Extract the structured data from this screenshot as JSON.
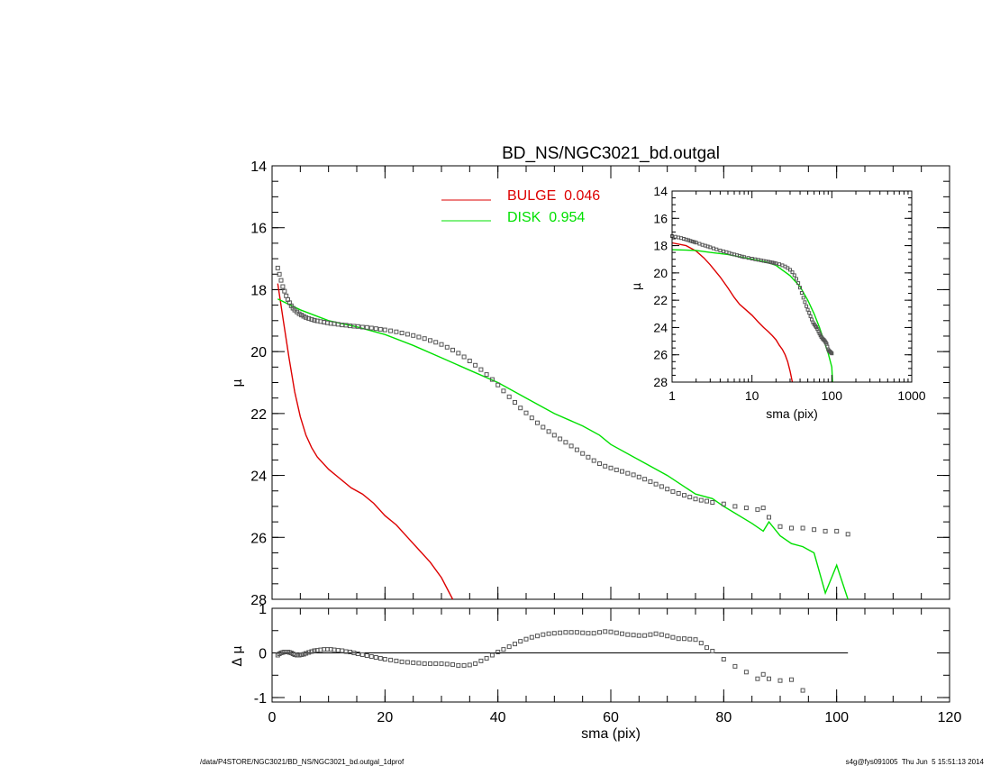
{
  "footer": {
    "left": "/data/P4STORE/NGC3021/BD_NS/NGC3021_bd.outgal_1dprof",
    "right": "s4g@fys091005  Thu Jun  5 15:51:13 2014"
  },
  "colors": {
    "bulge": "#dd0000",
    "disk": "#00e000",
    "data": "#555555",
    "axis": "#000000"
  },
  "chart_data": [
    {
      "id": "main",
      "type": "line",
      "title": "BD_NS/NGC3021_bd.outgal",
      "xlabel": "",
      "ylabel": "μ",
      "xlim": [
        0,
        120
      ],
      "ylim": [
        28,
        14
      ],
      "yticks": [
        14,
        16,
        18,
        20,
        22,
        24,
        26,
        28
      ],
      "legend_position": "top-center",
      "series": [
        {
          "name": "BULGE  0.046",
          "kind": "line",
          "color": "#dd0000",
          "x": [
            1,
            2,
            3,
            4,
            5,
            6,
            7,
            8,
            10,
            12,
            14,
            16,
            18,
            20,
            22,
            24,
            26,
            28,
            30,
            32
          ],
          "y": [
            17.8,
            19.0,
            20.2,
            21.3,
            22.1,
            22.7,
            23.1,
            23.4,
            23.8,
            24.1,
            24.4,
            24.6,
            24.9,
            25.3,
            25.6,
            26.0,
            26.4,
            26.8,
            27.3,
            28.0
          ]
        },
        {
          "name": "DISK  0.954",
          "kind": "line",
          "color": "#00e000",
          "x": [
            1,
            5,
            10,
            15,
            20,
            25,
            30,
            35,
            40,
            45,
            50,
            55,
            58,
            60,
            65,
            70,
            75,
            78,
            80,
            85,
            87,
            88,
            90,
            92,
            94,
            96,
            98,
            100,
            102
          ],
          "y": [
            18.3,
            18.65,
            19.0,
            19.2,
            19.45,
            19.8,
            20.2,
            20.6,
            21.0,
            21.5,
            22.0,
            22.4,
            22.7,
            23.0,
            23.5,
            24.0,
            24.6,
            24.75,
            25.0,
            25.55,
            25.8,
            25.5,
            25.95,
            26.2,
            26.3,
            26.5,
            27.8,
            26.9,
            28.1
          ]
        },
        {
          "name": "",
          "kind": "markers",
          "color": "#555555",
          "x": [
            1.0,
            1.3,
            1.6,
            1.9,
            2.2,
            2.5,
            2.8,
            3.1,
            3.4,
            3.7,
            4.0,
            4.4,
            4.8,
            5.2,
            5.6,
            6.0,
            6.5,
            7.0,
            7.5,
            8.0,
            8.6,
            9.2,
            9.8,
            10.4,
            11.0,
            11.7,
            12.4,
            13.1,
            13.8,
            14.5,
            15.2,
            16.0,
            16.8,
            17.6,
            18.4,
            19.2,
            20.0,
            21.0,
            22.0,
            23.0,
            24.0,
            25.0,
            26.0,
            27.0,
            28.0,
            29.0,
            30.0,
            31.0,
            32.0,
            33.0,
            34.0,
            35.0,
            36.0,
            37.0,
            38.0,
            39.0,
            40.0,
            41.0,
            42.0,
            43.0,
            44.0,
            45.0,
            46.0,
            47.0,
            48.0,
            49.0,
            50.0,
            51.0,
            52.0,
            53.0,
            54.0,
            55.0,
            56.0,
            57.0,
            58.0,
            59.0,
            60.0,
            61.0,
            62.0,
            63.0,
            64.0,
            65.0,
            66.0,
            67.0,
            68.0,
            69.0,
            70.0,
            71.0,
            72.0,
            73.0,
            74.0,
            75.0,
            76.0,
            77.0,
            78.0,
            80.0,
            82.0,
            84.0,
            86.0,
            87.0,
            88.0,
            90.0,
            92.0,
            94.0,
            96.0,
            98.0,
            100.0,
            102.0
          ],
          "y": [
            17.3,
            17.5,
            17.7,
            17.9,
            18.05,
            18.2,
            18.32,
            18.42,
            18.52,
            18.6,
            18.66,
            18.72,
            18.78,
            18.82,
            18.86,
            18.9,
            18.93,
            18.96,
            18.99,
            19.01,
            19.03,
            19.05,
            19.07,
            19.09,
            19.1,
            19.12,
            19.14,
            19.15,
            19.17,
            19.18,
            19.19,
            19.21,
            19.22,
            19.24,
            19.26,
            19.28,
            19.3,
            19.33,
            19.36,
            19.4,
            19.44,
            19.48,
            19.53,
            19.58,
            19.64,
            19.7,
            19.77,
            19.86,
            19.95,
            20.05,
            20.17,
            20.3,
            20.44,
            20.58,
            20.74,
            20.9,
            21.08,
            21.27,
            21.46,
            21.64,
            21.82,
            21.98,
            22.14,
            22.3,
            22.44,
            22.58,
            22.7,
            22.82,
            22.93,
            23.05,
            23.17,
            23.29,
            23.41,
            23.52,
            23.62,
            23.7,
            23.76,
            23.82,
            23.87,
            23.93,
            23.98,
            24.05,
            24.12,
            24.2,
            24.28,
            24.36,
            24.44,
            24.52,
            24.58,
            24.64,
            24.7,
            24.76,
            24.8,
            24.83,
            24.87,
            24.92,
            25.0,
            25.05,
            25.1,
            25.05,
            25.35,
            25.65,
            25.7,
            25.7,
            25.75,
            25.8,
            25.8,
            25.9
          ]
        }
      ]
    },
    {
      "id": "residual",
      "type": "scatter",
      "xlabel": "sma (pix)",
      "ylabel": "Δ μ",
      "xlim": [
        0,
        120
      ],
      "ylim": [
        -1.1,
        1.0
      ],
      "xticks": [
        0,
        20,
        40,
        60,
        80,
        100,
        120
      ],
      "yticks": [
        1,
        0,
        -1
      ],
      "zero_line": {
        "x": [
          0,
          102
        ],
        "y": 0
      },
      "series": [
        {
          "name": "",
          "kind": "markers",
          "color": "#555555",
          "x": [
            1.0,
            1.3,
            1.6,
            1.9,
            2.2,
            2.5,
            2.8,
            3.1,
            3.4,
            3.7,
            4.0,
            4.4,
            4.8,
            5.2,
            5.6,
            6.0,
            6.5,
            7.0,
            7.5,
            8.0,
            8.6,
            9.2,
            9.8,
            10.4,
            11.0,
            11.7,
            12.4,
            13.1,
            13.8,
            14.5,
            15.2,
            16.0,
            16.8,
            17.6,
            18.4,
            19.2,
            20.0,
            21.0,
            22.0,
            23.0,
            24.0,
            25.0,
            26.0,
            27.0,
            28.0,
            29.0,
            30.0,
            31.0,
            32.0,
            33.0,
            34.0,
            35.0,
            36.0,
            37.0,
            38.0,
            39.0,
            40.0,
            41.0,
            42.0,
            43.0,
            44.0,
            45.0,
            46.0,
            47.0,
            48.0,
            49.0,
            50.0,
            51.0,
            52.0,
            53.0,
            54.0,
            55.0,
            56.0,
            57.0,
            58.0,
            59.0,
            60.0,
            61.0,
            62.0,
            63.0,
            64.0,
            65.0,
            66.0,
            67.0,
            68.0,
            69.0,
            70.0,
            71.0,
            72.0,
            73.0,
            74.0,
            75.0,
            76.0,
            77.0,
            78.0,
            80.0,
            82.0,
            84.0,
            86.0,
            87.0,
            88.0,
            90.0,
            92.0,
            94.0
          ],
          "y": [
            -0.05,
            -0.02,
            0.0,
            0.01,
            0.02,
            0.02,
            0.02,
            0.01,
            0.0,
            -0.02,
            -0.04,
            -0.05,
            -0.05,
            -0.04,
            -0.03,
            -0.01,
            0.01,
            0.03,
            0.05,
            0.06,
            0.07,
            0.08,
            0.08,
            0.08,
            0.07,
            0.06,
            0.05,
            0.03,
            0.02,
            0.0,
            -0.02,
            -0.04,
            -0.06,
            -0.08,
            -0.1,
            -0.12,
            -0.14,
            -0.16,
            -0.18,
            -0.2,
            -0.21,
            -0.22,
            -0.23,
            -0.24,
            -0.24,
            -0.24,
            -0.24,
            -0.25,
            -0.26,
            -0.28,
            -0.28,
            -0.27,
            -0.24,
            -0.18,
            -0.12,
            -0.05,
            0.02,
            0.08,
            0.14,
            0.2,
            0.26,
            0.31,
            0.35,
            0.38,
            0.41,
            0.43,
            0.44,
            0.45,
            0.46,
            0.46,
            0.46,
            0.45,
            0.44,
            0.44,
            0.46,
            0.48,
            0.47,
            0.45,
            0.43,
            0.41,
            0.4,
            0.39,
            0.39,
            0.41,
            0.43,
            0.41,
            0.38,
            0.35,
            0.32,
            0.32,
            0.31,
            0.3,
            0.22,
            0.12,
            0.04,
            -0.14,
            -0.3,
            -0.43,
            -0.58,
            -0.48,
            -0.58,
            -0.62,
            -0.6,
            -0.84
          ]
        }
      ]
    },
    {
      "id": "inset",
      "type": "line",
      "xlabel": "sma (pix)",
      "ylabel": "μ",
      "xscale": "log",
      "xlim": [
        1,
        1000
      ],
      "ylim": [
        28,
        14
      ],
      "xticks": [
        1,
        10,
        100,
        1000
      ],
      "yticks": [
        14,
        16,
        18,
        20,
        22,
        24,
        26,
        28
      ],
      "series": [
        {
          "name": "",
          "kind": "line",
          "color": "#dd0000",
          "x": [
            1.0,
            1.5,
            2.0,
            2.5,
            3.0,
            4.0,
            5.0,
            6.0,
            7.0,
            8.0,
            10.0,
            12.0,
            14.0,
            16.0,
            18.0,
            20.0,
            22.0,
            24.0,
            26.0,
            28.0,
            30.0,
            32.0
          ],
          "y": [
            17.8,
            18.0,
            18.4,
            18.9,
            19.4,
            20.3,
            21.1,
            21.8,
            22.3,
            22.6,
            23.1,
            23.6,
            24.0,
            24.3,
            24.6,
            24.9,
            25.3,
            25.6,
            26.0,
            26.5,
            27.2,
            28.0
          ]
        },
        {
          "name": "",
          "kind": "line",
          "color": "#00e000",
          "x": [
            1.0,
            2.0,
            3.0,
            5.0,
            10.0,
            15.0,
            20.0,
            30.0,
            40.0,
            50.0,
            60.0,
            70.0,
            80.0,
            90.0,
            100.0,
            102.0
          ],
          "y": [
            18.3,
            18.35,
            18.5,
            18.65,
            19.0,
            19.2,
            19.45,
            20.2,
            21.0,
            22.0,
            23.0,
            24.0,
            25.0,
            25.9,
            26.9,
            28.0
          ]
        },
        {
          "name": "",
          "kind": "markers",
          "color": "#555555",
          "x": [
            1.0,
            1.1,
            1.2,
            1.3,
            1.4,
            1.5,
            1.6,
            1.7,
            1.8,
            1.9,
            2.0,
            2.2,
            2.4,
            2.6,
            2.8,
            3.0,
            3.3,
            3.6,
            4.0,
            4.4,
            4.8,
            5.2,
            5.6,
            6.0,
            6.5,
            7.0,
            7.5,
            8.0,
            9.0,
            10.0,
            11.0,
            12.0,
            13.0,
            14.0,
            15.0,
            16.0,
            17.0,
            18.0,
            19.0,
            20.0,
            22.0,
            24.0,
            26.0,
            28.0,
            30.0,
            32.0,
            34.0,
            36.0,
            38.0,
            40.0,
            42.0,
            44.0,
            46.0,
            48.0,
            50.0,
            52.0,
            54.0,
            56.0,
            58.0,
            60.0,
            62.0,
            64.0,
            66.0,
            68.0,
            70.0,
            72.0,
            74.0,
            76.0,
            78.0,
            80.0,
            82.0,
            84.0,
            86.0,
            88.0,
            90.0,
            92.0,
            94.0,
            96.0,
            98.0,
            100.0
          ],
          "y": [
            17.3,
            17.35,
            17.4,
            17.45,
            17.5,
            17.55,
            17.6,
            17.65,
            17.7,
            17.74,
            17.78,
            17.86,
            17.94,
            18.0,
            18.06,
            18.12,
            18.2,
            18.27,
            18.35,
            18.42,
            18.48,
            18.54,
            18.6,
            18.65,
            18.7,
            18.75,
            18.8,
            18.84,
            18.9,
            18.95,
            19.0,
            19.04,
            19.08,
            19.12,
            19.15,
            19.18,
            19.21,
            19.24,
            19.27,
            19.3,
            19.36,
            19.44,
            19.53,
            19.64,
            19.77,
            19.95,
            20.17,
            20.44,
            20.74,
            21.08,
            21.46,
            21.82,
            22.14,
            22.44,
            22.7,
            22.93,
            23.17,
            23.41,
            23.62,
            23.76,
            23.87,
            23.98,
            24.12,
            24.28,
            24.44,
            24.58,
            24.7,
            24.8,
            24.87,
            24.92,
            25.0,
            25.1,
            25.2,
            25.4,
            25.6,
            25.7,
            25.75,
            25.8,
            25.85,
            25.9
          ]
        }
      ]
    }
  ]
}
